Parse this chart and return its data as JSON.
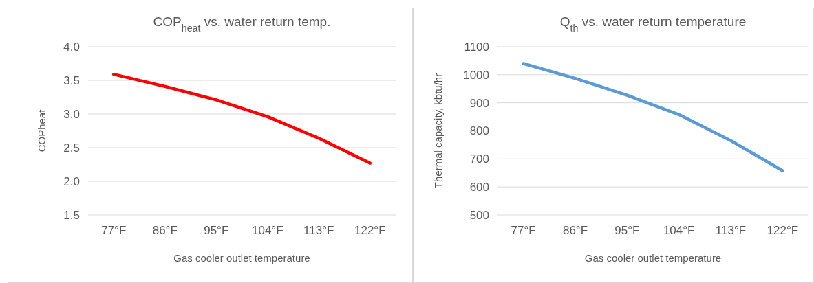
{
  "chart_data": [
    {
      "type": "line",
      "title": "COP$_{heat}$ vs. water return temp.",
      "xlabel": "Gas cooler outlet temperature",
      "ylabel": "COPheat",
      "categories": [
        "77°F",
        "86°F",
        "95°F",
        "104°F",
        "113°F",
        "122°F"
      ],
      "series": [
        {
          "color": "#ff0000",
          "values": [
            3.59,
            3.41,
            3.21,
            2.96,
            2.64,
            2.27
          ]
        }
      ],
      "ylim": [
        1.5,
        4.0
      ],
      "yticks": [
        {
          "value": 1.5,
          "label": "1.5"
        },
        {
          "value": 2.0,
          "label": "2.0"
        },
        {
          "value": 2.5,
          "label": "2.5"
        },
        {
          "value": 3.0,
          "label": "3.0"
        },
        {
          "value": 3.5,
          "label": "3.5"
        },
        {
          "value": 4.0,
          "label": "4.0"
        }
      ],
      "grid": "y",
      "marker": "none",
      "line_style": "solid"
    },
    {
      "type": "line",
      "title": "Q$_{th}$ vs. water return temperature",
      "xlabel": "Gas cooler outlet temperature",
      "ylabel": "Thermal capacity, kbtu/hr",
      "categories": [
        "77°F",
        "86°F",
        "95°F",
        "104°F",
        "113°F",
        "122°F"
      ],
      "series": [
        {
          "color": "#5b9bd5",
          "values": [
            1040,
            987,
            927,
            858,
            765,
            658
          ]
        }
      ],
      "ylim": [
        500,
        1100
      ],
      "yticks": [
        500,
        600,
        700,
        800,
        900,
        1000,
        1100
      ],
      "grid": "y",
      "marker": "none",
      "line_style": "solid"
    }
  ]
}
